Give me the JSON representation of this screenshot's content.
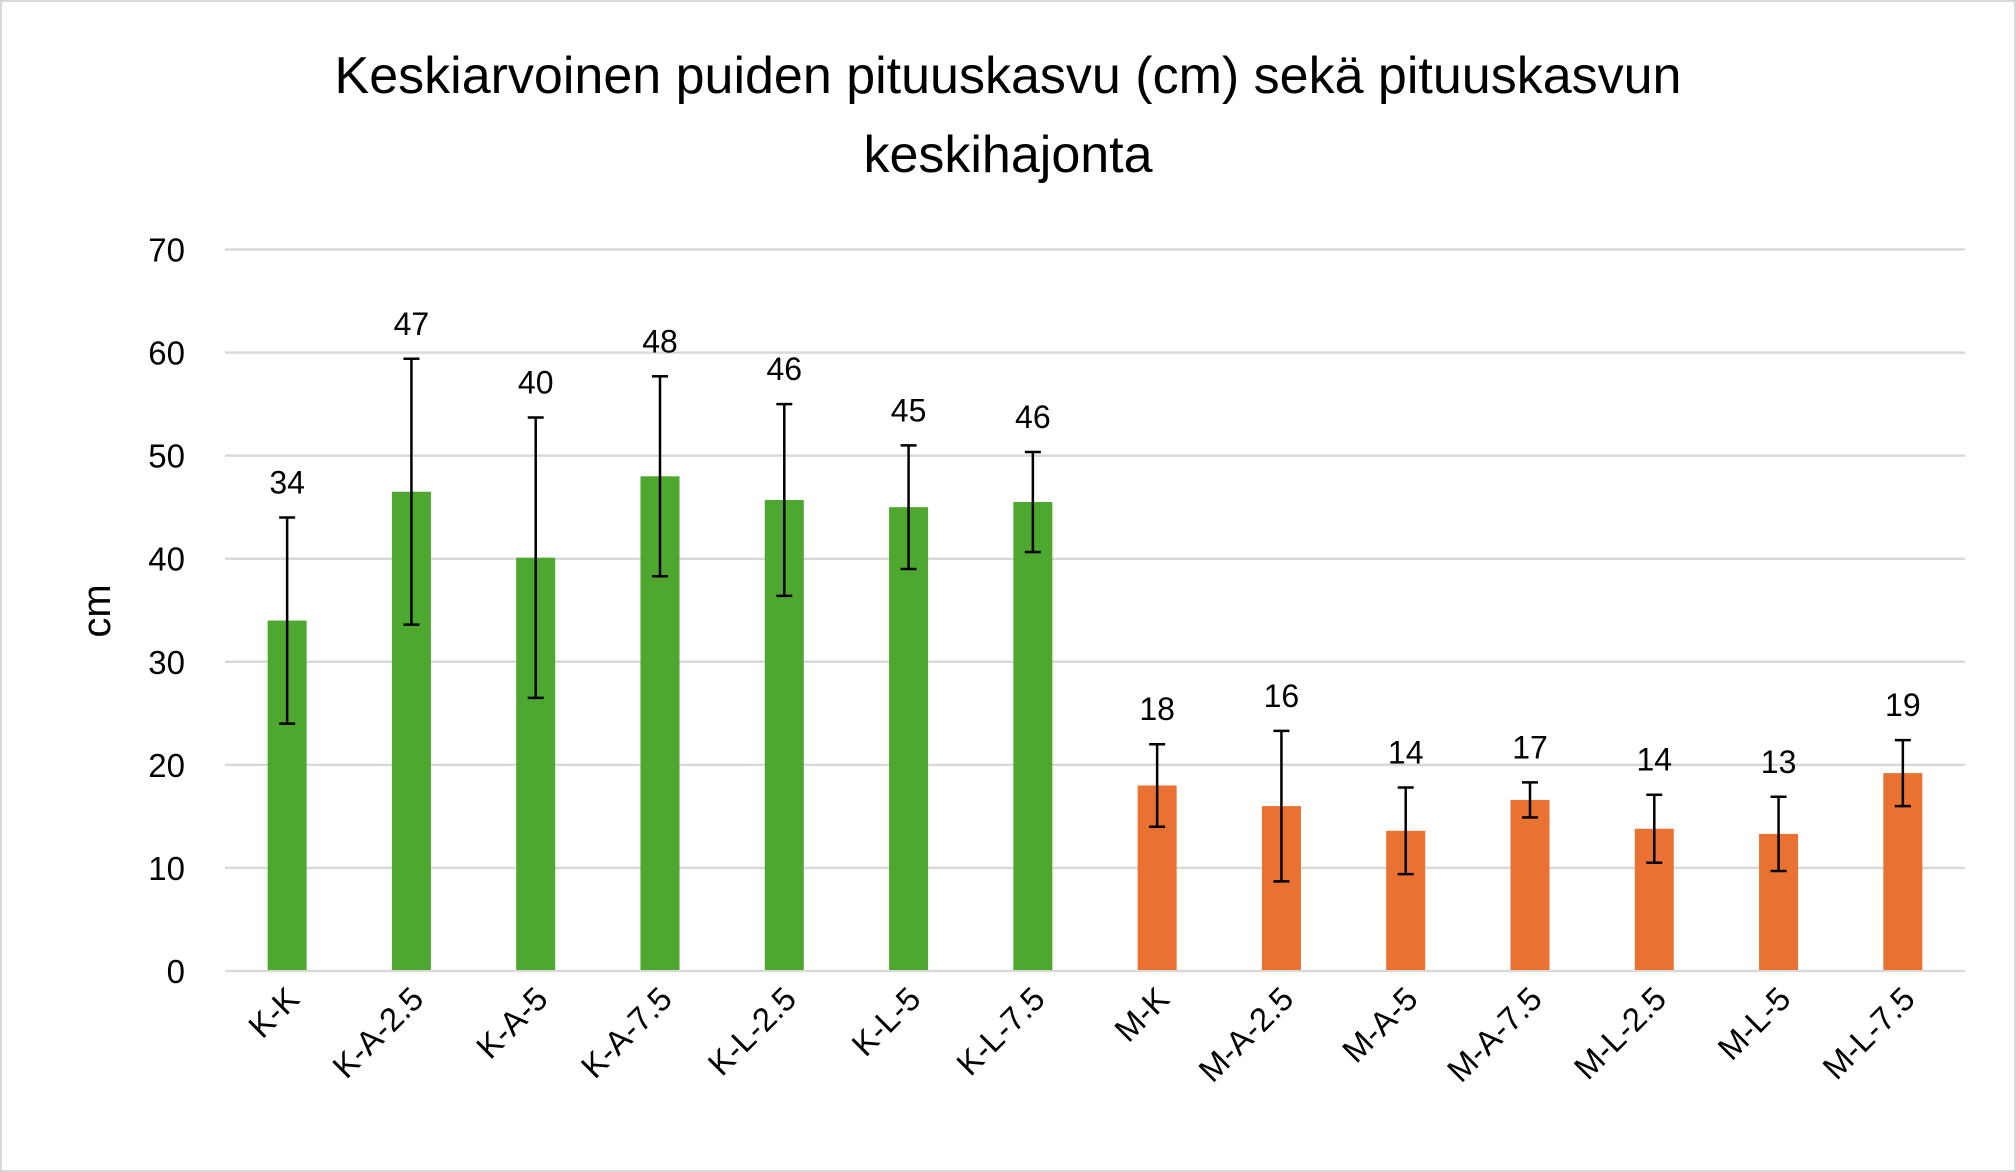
{
  "chart_data": {
    "type": "bar",
    "title_lines": [
      "Keskiarvoinen puiden pituuskasvu (cm) sekä pituuskasvun",
      "keskihajonta"
    ],
    "xlabel": "",
    "ylabel": "cm",
    "ylim": [
      0,
      70
    ],
    "yticks": [
      0,
      10,
      20,
      30,
      40,
      50,
      60,
      70
    ],
    "grid": true,
    "legend": "none",
    "categories": [
      "K-K",
      "K-A-2.5",
      "K-A-5",
      "K-A-7.5",
      "K-L-2.5",
      "K-L-5",
      "K-L-7.5",
      "M-K",
      "M-A-2.5",
      "M-A-5",
      "M-A-7.5",
      "M-L-2.5",
      "M-L-5",
      "M-L-7.5"
    ],
    "values": [
      34,
      46.5,
      40.1,
      48,
      45.7,
      45,
      45.5,
      18,
      16,
      13.6,
      16.6,
      13.8,
      13.3,
      19.2
    ],
    "std_dev": [
      10,
      12.9,
      13.6,
      9.7,
      9.3,
      6,
      4.85,
      4,
      7.3,
      4.2,
      1.7,
      3.3,
      3.6,
      3.2
    ],
    "data_labels": [
      "34",
      "47",
      "40",
      "48",
      "46",
      "45",
      "46",
      "18",
      "16",
      "14",
      "17",
      "14",
      "13",
      "19"
    ],
    "colors": [
      "#4ea72e",
      "#4ea72e",
      "#4ea72e",
      "#4ea72e",
      "#4ea72e",
      "#4ea72e",
      "#4ea72e",
      "#e97132",
      "#e97132",
      "#e97132",
      "#e97132",
      "#e97132",
      "#e97132",
      "#e97132"
    ],
    "gridline_color": "#d9d9d9"
  }
}
